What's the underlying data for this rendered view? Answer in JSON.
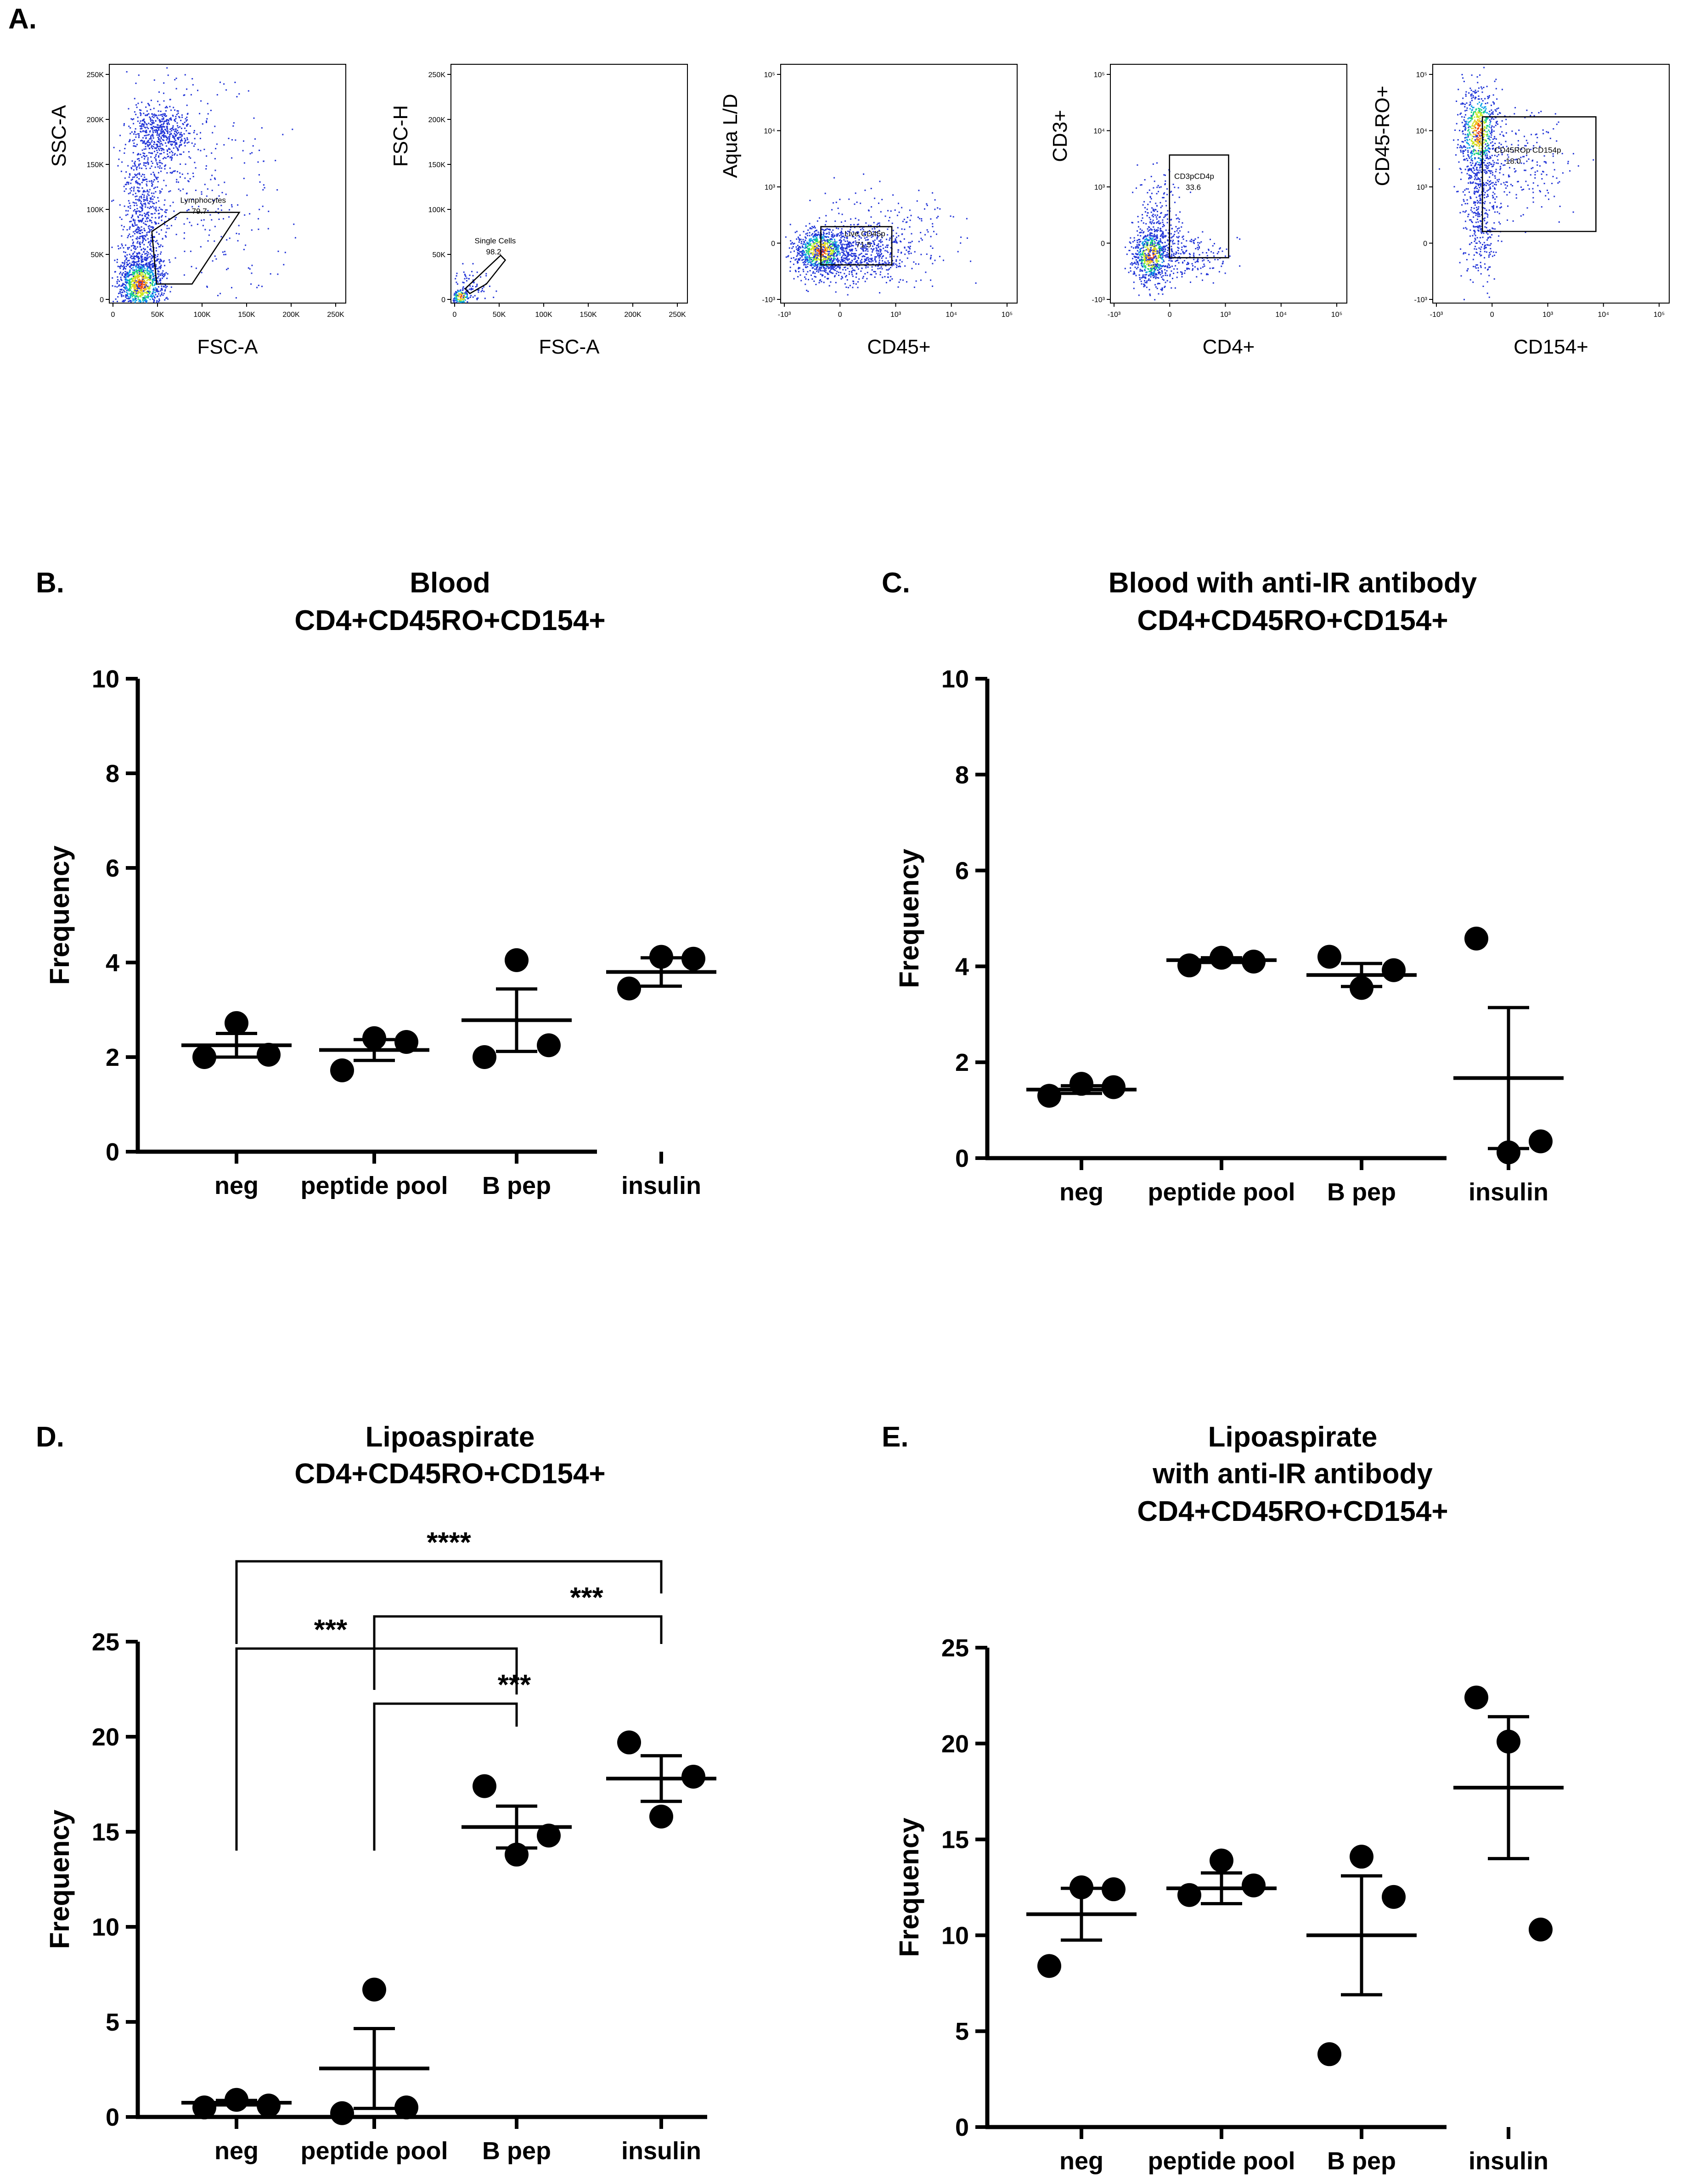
{
  "figure_label": "Figure",
  "chart_data": [
    {
      "panel": "A.",
      "type": "scatter",
      "subplots": [
        {
          "xlabel": "FSC-A",
          "ylabel": "SSC-A",
          "scale": "linear",
          "xticks": [
            "0",
            "50K",
            "100K",
            "150K",
            "200K",
            "250K"
          ],
          "yticks": [
            "0",
            "50K",
            "100K",
            "150K",
            "200K",
            "250K"
          ],
          "gate": {
            "name": "Lymphocytes",
            "value": "79.7"
          }
        },
        {
          "xlabel": "FSC-A",
          "ylabel": "FSC-H",
          "scale": "linear",
          "xticks": [
            "0",
            "50K",
            "100K",
            "150K",
            "200K",
            "250K"
          ],
          "yticks": [
            "0",
            "50K",
            "100K",
            "150K",
            "200K",
            "250K"
          ],
          "gate": {
            "name": "Single Cells",
            "value": "98.2"
          }
        },
        {
          "xlabel": "CD45+",
          "ylabel": "Aqua L/D",
          "scale": "biexponential",
          "xticks": [
            "-10³",
            "0",
            "10³",
            "10⁴",
            "10⁵"
          ],
          "yticks": [
            "-10³",
            "0",
            "10³",
            "10⁴",
            "10⁵"
          ],
          "gate": {
            "name": "Live CD45p",
            "value": "71.5"
          }
        },
        {
          "xlabel": "CD4+",
          "ylabel": "CD3+",
          "scale": "biexponential",
          "xticks": [
            "-10³",
            "0",
            "10³",
            "10⁴",
            "10⁵"
          ],
          "yticks": [
            "-10³",
            "0",
            "10³",
            "10⁴",
            "10⁵"
          ],
          "gate": {
            "name": "CD3pCD4p",
            "value": "33.6"
          }
        },
        {
          "xlabel": "CD154+",
          "ylabel": "CD45-RO+",
          "scale": "biexponential",
          "xticks": [
            "-10³",
            "0",
            "10³",
            "10⁴",
            "10⁵"
          ],
          "yticks": [
            "-10³",
            "0",
            "10³",
            "10⁴",
            "10⁵"
          ],
          "gate": {
            "name": "CD45ROp CD154p",
            "value": "18.0"
          }
        }
      ]
    },
    {
      "panel": "B.",
      "type": "scatter",
      "title": [
        "Blood",
        "CD4+CD45RO+CD154+"
      ],
      "ylabel": "Frequency",
      "ylim": [
        0,
        10
      ],
      "yticks": [
        0,
        2,
        4,
        6,
        8,
        10
      ],
      "categories": [
        "neg",
        "peptide pool",
        "B pep",
        "insulin"
      ],
      "points": [
        [
          2.0,
          2.72,
          2.05
        ],
        [
          1.72,
          2.4,
          2.32
        ],
        [
          2.0,
          4.05,
          2.25
        ],
        [
          3.45,
          4.12,
          4.08
        ]
      ],
      "mean": [
        2.25,
        2.15,
        2.78,
        3.8
      ],
      "sem": [
        0.25,
        0.22,
        0.66,
        0.3
      ],
      "significance": []
    },
    {
      "panel": "C.",
      "type": "scatter",
      "title": [
        "Blood with anti-IR antibody",
        "CD4+CD45RO+CD154+"
      ],
      "ylabel": "Frequency",
      "ylim": [
        0,
        10
      ],
      "yticks": [
        0,
        2,
        4,
        6,
        8,
        10
      ],
      "categories": [
        "neg",
        "peptide pool",
        "B pep",
        "insulin"
      ],
      "points": [
        [
          1.3,
          1.55,
          1.48
        ],
        [
          4.02,
          4.18,
          4.1
        ],
        [
          4.2,
          3.55,
          3.92
        ],
        [
          4.58,
          0.12,
          0.35
        ]
      ],
      "mean": [
        1.43,
        4.13,
        3.82,
        1.67
      ],
      "sem": [
        0.08,
        0.05,
        0.24,
        1.47
      ],
      "significance": []
    },
    {
      "panel": "D.",
      "type": "scatter",
      "title": [
        "Lipoaspirate",
        "CD4+CD45RO+CD154+"
      ],
      "ylabel": "Frequency",
      "ylim": [
        0,
        25
      ],
      "yticks": [
        0,
        5,
        10,
        15,
        20,
        25
      ],
      "categories": [
        "neg",
        "peptide pool",
        "B pep",
        "insulin"
      ],
      "points": [
        [
          0.5,
          0.9,
          0.6
        ],
        [
          0.2,
          6.7,
          0.5
        ],
        [
          17.4,
          13.8,
          14.8
        ],
        [
          19.7,
          15.8,
          17.9
        ]
      ],
      "mean": [
        0.75,
        2.55,
        15.25,
        17.8
      ],
      "sem": [
        0.12,
        2.1,
        1.1,
        1.2
      ],
      "significance": [
        {
          "from": "neg",
          "to": "insulin",
          "label": "****"
        },
        {
          "from": "peptide pool",
          "to": "insulin",
          "label": "***"
        },
        {
          "from": "neg",
          "to": "B pep",
          "label": "***"
        },
        {
          "from": "peptide pool",
          "to": "B pep",
          "label": "***"
        }
      ]
    },
    {
      "panel": "E.",
      "type": "scatter",
      "title": [
        "Lipoaspirate",
        "with anti-IR antibody",
        "CD4+CD45RO+CD154+"
      ],
      "ylabel": "Frequency",
      "ylim": [
        0,
        25
      ],
      "yticks": [
        0,
        5,
        10,
        15,
        20,
        25
      ],
      "categories": [
        "neg",
        "peptide pool",
        "B pep",
        "insulin"
      ],
      "points": [
        [
          8.4,
          12.5,
          12.4
        ],
        [
          12.1,
          13.9,
          12.6
        ],
        [
          3.8,
          14.1,
          12.0
        ],
        [
          22.4,
          20.1,
          10.3
        ]
      ],
      "mean": [
        11.1,
        12.45,
        10.0,
        17.7
      ],
      "sem": [
        1.35,
        0.8,
        3.1,
        3.7
      ],
      "significance": []
    }
  ]
}
